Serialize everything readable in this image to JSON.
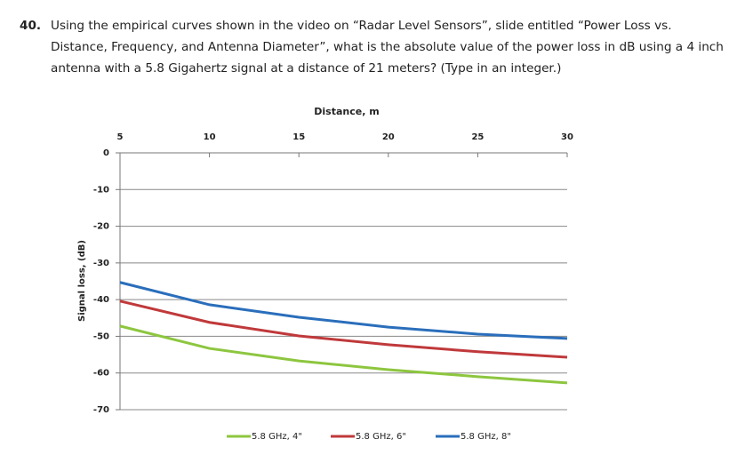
{
  "question": {
    "number": "40.",
    "lines": [
      "Using the empirical curves shown in the video on “Radar Level Sensors”, slide entitled “Power Loss vs.",
      "Distance, Frequency, and Antenna Diameter”, what is the absolute value of the power loss in dB using a 4 inch",
      "antenna with a 5.8 Gigahertz signal at a distance of 21 meters? (Type in an integer.)"
    ]
  },
  "chart_data": {
    "type": "line",
    "x_label": "Distance, m",
    "y_label": "Signal loss, (dB)",
    "x": [
      5,
      10,
      15,
      20,
      25,
      30
    ],
    "series": [
      {
        "name": "5.8 GHz, 4\"",
        "color": "#8dc63f",
        "values": [
          -47.2,
          -53.3,
          -56.7,
          -59.1,
          -61,
          -62.7
        ]
      },
      {
        "name": "5.8 GHz, 6\"",
        "color": "#c0393b",
        "values": [
          -40.4,
          -46.2,
          -49.9,
          -52.3,
          -54.2,
          -55.7
        ]
      },
      {
        "name": "5.8 GHz, 8\"",
        "color": "#2a6ebb",
        "values": [
          -35.3,
          -41.4,
          -44.8,
          -47.5,
          -49.4,
          -50.6
        ]
      }
    ],
    "xlim": [
      5,
      30
    ],
    "xticks": [
      5,
      10,
      15,
      20,
      25,
      30
    ],
    "ylim": [
      -70,
      0
    ],
    "yticks": [
      0,
      -10,
      -20,
      -30,
      -40,
      -50,
      -60,
      -70
    ],
    "grid": true
  }
}
